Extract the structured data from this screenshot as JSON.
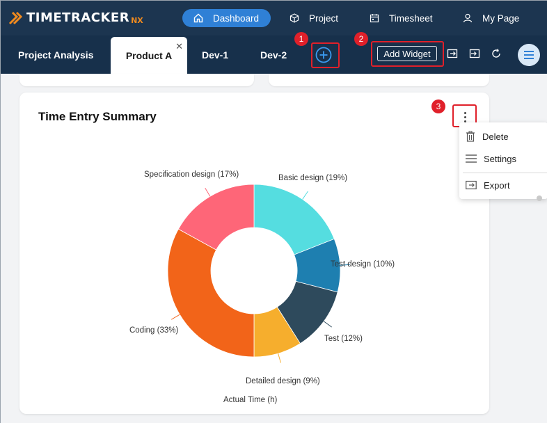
{
  "brand": {
    "name": "TIMETRACKER",
    "suffix": "NX"
  },
  "nav": {
    "dashboard": "Dashboard",
    "project": "Project",
    "timesheet": "Timesheet",
    "mypage": "My Page"
  },
  "tabs": [
    {
      "label": "Project Analysis",
      "active": false
    },
    {
      "label": "Product A",
      "active": true
    },
    {
      "label": "Dev-1",
      "active": false
    },
    {
      "label": "Dev-2",
      "active": false
    }
  ],
  "tab_close_symbol": "✕",
  "toolbar": {
    "add_widget_label": "Add Widget"
  },
  "callouts": [
    "1",
    "2",
    "3"
  ],
  "widget": {
    "title": "Time Entry Summary",
    "menu": {
      "delete": "Delete",
      "settings": "Settings",
      "export": "Export"
    }
  },
  "colors": {
    "accent": "#2f80d6",
    "topbar": "#1c3550",
    "highlight": "#e0202a"
  },
  "icons": {
    "dashboard": "home-icon",
    "project": "cube-icon",
    "timesheet": "calendar-icon",
    "mypage": "user-icon",
    "add_tab": "plus-circle-icon",
    "export": "export-icon",
    "import": "import-icon",
    "refresh": "refresh-icon",
    "menu": "hamburger-menu-icon",
    "delete": "trash-icon",
    "settings": "lines-icon",
    "export_menu": "export-icon"
  },
  "chart_data": {
    "type": "pie",
    "donut": true,
    "title": "Time Entry Summary",
    "xlabel": "Actual Time (h)",
    "slices": [
      {
        "label": "Basic design (19%)",
        "name": "Basic design",
        "value": 19,
        "color": "#55dde0"
      },
      {
        "label": "Test design (10%)",
        "name": "Test design",
        "value": 10,
        "color": "#1e7fb0"
      },
      {
        "label": "Test (12%)",
        "name": "Test",
        "value": 12,
        "color": "#2e4a5c"
      },
      {
        "label": "Detailed design (9%)",
        "name": "Detailed design",
        "value": 9,
        "color": "#f6ae2d"
      },
      {
        "label": "Coding (33%)",
        "name": "Coding",
        "value": 33,
        "color": "#f26419"
      },
      {
        "label": "Specification design (17%)",
        "name": "Specification design",
        "value": 17,
        "color": "#fe6678"
      }
    ]
  }
}
